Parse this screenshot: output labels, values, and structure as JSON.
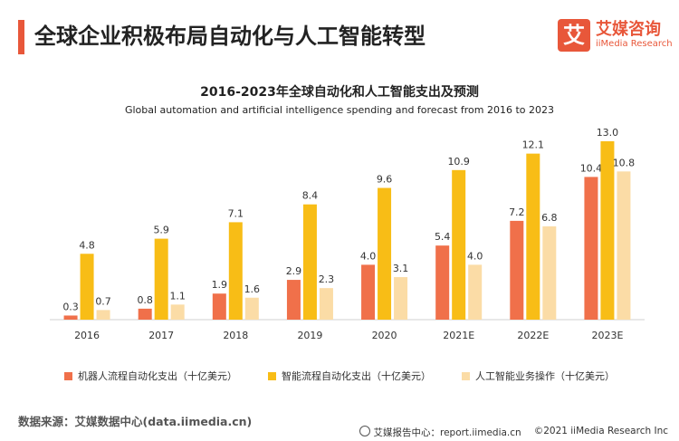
{
  "header": {
    "title": "全球企业积极布局自动化与人工智能转型",
    "logo_glyph": "艾",
    "logo_cn": "艾媒咨询",
    "logo_en": "iiMedia Research"
  },
  "chart_data": {
    "type": "bar",
    "title": "2016-2023年全球自动化和人工智能支出及预测",
    "subtitle": "Global automation and artificial intelligence spending and forecast from 2016 to 2023",
    "categories": [
      "2016",
      "2017",
      "2018",
      "2019",
      "2020",
      "2021E",
      "2022E",
      "2023E"
    ],
    "ylim": [
      0,
      13.0
    ],
    "grid": false,
    "legend": "bottom",
    "series": [
      {
        "name": "机器人流程自动化支出（十亿美元）",
        "color": "#f0704a",
        "values": [
          0.3,
          0.8,
          1.9,
          2.9,
          4.0,
          5.4,
          7.2,
          10.4
        ]
      },
      {
        "name": "智能流程自动化支出（十亿美元）",
        "color": "#f8bd16",
        "values": [
          4.8,
          5.9,
          7.1,
          8.4,
          9.6,
          10.9,
          12.1,
          13.0
        ]
      },
      {
        "name": "人工智能业务操作（十亿美元）",
        "color": "#fbdca6",
        "values": [
          0.7,
          1.1,
          1.6,
          2.3,
          3.1,
          4.0,
          6.8,
          10.8
        ]
      }
    ]
  },
  "footer": {
    "source": "数据来源：艾媒数据中心(data.iimedia.cn)",
    "report": "艾媒报告中心：report.iimedia.cn",
    "copyright": "©2021  iiMedia Research  Inc"
  }
}
